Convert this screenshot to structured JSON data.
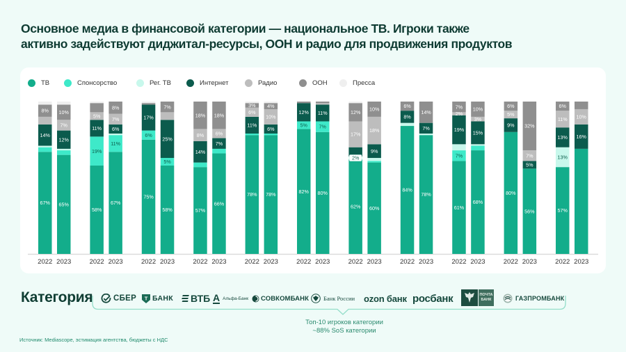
{
  "page": {
    "title_lines": [
      "Основное медиа в финансовой категории — национальное ТВ. Игроки также",
      "активно задействуют диджитал-ресурсы, ООН и радио для продвижения продуктов"
    ],
    "category_label": "Категория",
    "top10_lines": [
      "Топ-10 игроков категории",
      "~88% SoS категории"
    ],
    "source": "Источник: Mediascope, эстимация агентства, бюджеты с НДС"
  },
  "logos": [
    {
      "key": "sber",
      "text": "СБЕР",
      "icon": "sber-check-icon"
    },
    {
      "key": "tbank",
      "text": "БАНК",
      "icon_letter": "Т",
      "icon": "tbank-shield-icon"
    },
    {
      "key": "vtb",
      "text": "ВТБ",
      "icon": "vtb-stripes-icon"
    },
    {
      "key": "alfa",
      "text": "Альфа-Банк",
      "icon_letter": "А",
      "icon": "alfa-a-icon"
    },
    {
      "key": "sovcom",
      "text": "СОВКОМБАНК",
      "icon": "sovcombank-circle-icon"
    },
    {
      "key": "cbr",
      "text": "Банк России",
      "icon": "bank-of-russia-emblem-icon"
    },
    {
      "key": "ozon",
      "text": "ozon банк"
    },
    {
      "key": "rosbank",
      "text": "росбанк"
    },
    {
      "key": "pochta",
      "text_lines": [
        "ПОЧТА",
        "БАНК"
      ],
      "icon": "pochta-eagle-icon"
    },
    {
      "key": "gazprom",
      "text": "ГАЗПРОМБАНК",
      "icon": "gazprombank-globe-icon"
    }
  ],
  "chart_data": {
    "type": "bar",
    "stacked": true,
    "title": "Основное медиа в финансовой категории — национальное ТВ",
    "xlabel": "",
    "ylabel": "",
    "unit": "%",
    "ylim": [
      0,
      100
    ],
    "grid": false,
    "legend_position": "top-left",
    "x": [
      "2022",
      "2023"
    ],
    "series": [
      {
        "key": "tv",
        "name": "ТВ",
        "color": "#13ad8b"
      },
      {
        "key": "sponsorship",
        "name": "Спонсорство",
        "color": "#3ee9c9"
      },
      {
        "key": "regional-tv",
        "name": "Рег. ТВ",
        "color": "#c8f8ec"
      },
      {
        "key": "internet",
        "name": "Интернет",
        "color": "#0b5b4d"
      },
      {
        "key": "radio",
        "name": "Радио",
        "color": "#bdbdbd"
      },
      {
        "key": "ooh",
        "name": "ООН",
        "color": "#8f8f8f"
      },
      {
        "key": "press",
        "name": "Пресса",
        "color": "#efefef"
      }
    ],
    "groups": [
      {
        "name": "Категория",
        "bars": [
          {
            "year": "2022",
            "values": [
              67,
              3,
              1,
              14,
              5,
              8,
              2
            ],
            "labels": [
              "67%",
              "",
              "",
              "14%",
              "",
              "8%",
              ""
            ]
          },
          {
            "year": "2023",
            "values": [
              65,
              3,
              1,
              12,
              7,
              10,
              2
            ],
            "labels": [
              "65%",
              "",
              "",
              "12%",
              "7%",
              "10%",
              ""
            ]
          }
        ]
      },
      {
        "name": "Сбер",
        "bars": [
          {
            "year": "2022",
            "values": [
              58,
              19,
              0,
              11,
              5,
              6,
              1
            ],
            "labels": [
              "58%",
              "19%",
              "",
              "11%",
              "5%",
              "",
              ""
            ]
          },
          {
            "year": "2023",
            "values": [
              67,
              11,
              1,
              6,
              7,
              8,
              0
            ],
            "labels": [
              "67%",
              "11%",
              "",
              "6%",
              "7%",
              "8%",
              ""
            ]
          }
        ]
      },
      {
        "name": "Т-Банк",
        "bars": [
          {
            "year": "2022",
            "values": [
              75,
              6,
              0,
              17,
              0,
              1,
              1
            ],
            "labels": [
              "75%",
              "6%",
              "",
              "17%",
              "",
              "",
              ""
            ]
          },
          {
            "year": "2023",
            "values": [
              58,
              5,
              0,
              25,
              5,
              7,
              0
            ],
            "labels": [
              "58%",
              "5%",
              "",
              "25%",
              "",
              "7%",
              ""
            ]
          }
        ]
      },
      {
        "name": "ВТБ",
        "bars": [
          {
            "year": "2022",
            "values": [
              57,
              3,
              0,
              14,
              8,
              18,
              0
            ],
            "labels": [
              "57%",
              "",
              "",
              "14%",
              "8%",
              "18%",
              ""
            ]
          },
          {
            "year": "2023",
            "values": [
              66,
              3,
              0,
              7,
              6,
              18,
              0
            ],
            "labels": [
              "66%",
              "",
              "",
              "7%",
              "6%",
              "18%",
              ""
            ]
          }
        ]
      },
      {
        "name": "Альфа-Банк",
        "bars": [
          {
            "year": "2022",
            "values": [
              78,
              1,
              0,
              11,
              6,
              3,
              1
            ],
            "labels": [
              "78%",
              "",
              "",
              "11%",
              "6%",
              "3%",
              ""
            ]
          },
          {
            "year": "2023",
            "values": [
              78,
              1,
              0,
              6,
              10,
              4,
              1
            ],
            "labels": [
              "78%",
              "",
              "",
              "6%",
              "10%",
              "4%",
              ""
            ]
          }
        ]
      },
      {
        "name": "Совкомбанк",
        "bars": [
          {
            "year": "2022",
            "values": [
              82,
              5,
              0,
              12,
              0,
              1,
              0
            ],
            "labels": [
              "82%",
              "5%",
              "",
              "12%",
              "",
              "",
              ""
            ]
          },
          {
            "year": "2023",
            "values": [
              80,
              7,
              0,
              11,
              1,
              1,
              0
            ],
            "labels": [
              "80%",
              "7%",
              "",
              "11%",
              "",
              "",
              ""
            ]
          }
        ]
      },
      {
        "name": "Банк России",
        "bars": [
          {
            "year": "2022",
            "values": [
              62,
              0,
              2,
              6,
              17,
              12,
              1
            ],
            "labels": [
              "62%",
              "",
              "2%",
              "",
              "17%",
              "12%",
              ""
            ]
          },
          {
            "year": "2023",
            "values": [
              60,
              1,
              2,
              9,
              18,
              10,
              0
            ],
            "labels": [
              "60%",
              "",
              "",
              "9%",
              "18%",
              "10%",
              ""
            ]
          }
        ]
      },
      {
        "name": "Ozon Банк",
        "bars": [
          {
            "year": "2022",
            "values": [
              84,
              0,
              2,
              8,
              0,
              6,
              0
            ],
            "labels": [
              "84%",
              "",
              "",
              "8%",
              "",
              "6%",
              ""
            ]
          },
          {
            "year": "2023",
            "values": [
              78,
              0,
              1,
              7,
              0,
              14,
              0
            ],
            "labels": [
              "78%",
              "",
              "",
              "7%",
              "",
              "14%",
              ""
            ]
          }
        ]
      },
      {
        "name": "Росбанк",
        "bars": [
          {
            "year": "2022",
            "values": [
              61,
              7,
              4,
              19,
              2,
              7,
              0
            ],
            "labels": [
              "61%",
              "7%",
              "",
              "19%",
              "2%",
              "7%",
              ""
            ]
          },
          {
            "year": "2023",
            "values": [
              68,
              3,
              1,
              15,
              3,
              10,
              0
            ],
            "labels": [
              "68%",
              "",
              "",
              "15%",
              "3%",
              "10%",
              ""
            ]
          }
        ]
      },
      {
        "name": "Почта Банк",
        "bars": [
          {
            "year": "2022",
            "values": [
              80,
              0,
              0,
              9,
              5,
              6,
              0
            ],
            "labels": [
              "80%",
              "",
              "",
              "9%",
              "5%",
              "6%",
              ""
            ]
          },
          {
            "year": "2023",
            "values": [
              56,
              0,
              0,
              5,
              7,
              32,
              0
            ],
            "labels": [
              "56%",
              "",
              "",
              "5%",
              "7%",
              "32%",
              ""
            ]
          }
        ]
      },
      {
        "name": "Газпромбанк",
        "bars": [
          {
            "year": "2022",
            "values": [
              57,
              0,
              13,
              13,
              11,
              6,
              0
            ],
            "labels": [
              "57%",
              "",
              "13%",
              "13%",
              "11%",
              "6%",
              ""
            ]
          },
          {
            "year": "2023",
            "values": [
              69,
              0,
              0,
              16,
              10,
              5,
              0
            ],
            "labels": [
              "",
              "",
              "",
              "16%",
              "10%",
              "",
              ""
            ]
          }
        ]
      }
    ]
  }
}
